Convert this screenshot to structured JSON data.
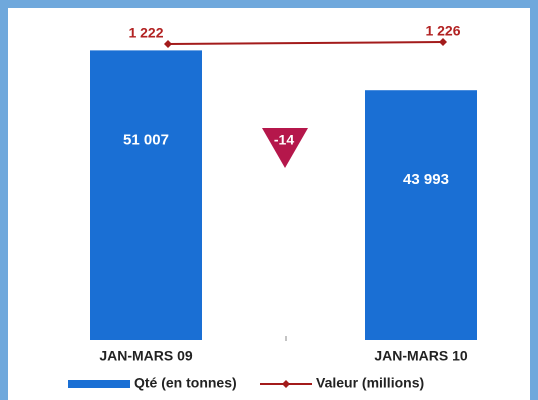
{
  "chart_data": {
    "type": "bar_line",
    "categories": [
      "JAN-MARS 09",
      "JAN-MARS 10"
    ],
    "series": [
      {
        "name": "Qté (en tonnes)",
        "color": "#1a6fd4",
        "values": [
          51007,
          43993
        ],
        "value_labels": [
          "51 007",
          "43 993"
        ]
      },
      {
        "name": "Valeur (millions)",
        "color": "#a31b1b",
        "axis": "y2",
        "values": [
          1222,
          1226
        ],
        "value_labels": [
          "1 222",
          "1 226"
        ]
      }
    ],
    "annotation": "-14",
    "ylim": [
      0,
      59000
    ],
    "y2lim": [
      630,
      1300
    ],
    "legend": "bottom"
  }
}
